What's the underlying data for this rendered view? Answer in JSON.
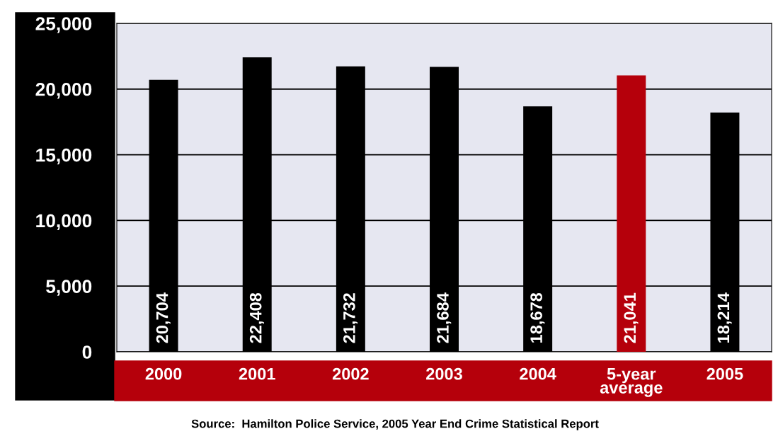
{
  "chart_data": {
    "type": "bar",
    "categories": [
      "2000",
      "2001",
      "2002",
      "2003",
      "2004",
      "5-year\naverage",
      "2005"
    ],
    "values": [
      20704,
      22408,
      21732,
      21684,
      18678,
      21041,
      18214
    ],
    "colors": [
      "#000000",
      "#000000",
      "#000000",
      "#000000",
      "#000000",
      "#b5000b",
      "#000000"
    ],
    "value_labels": [
      "20,704",
      "22,408",
      "21,732",
      "21,684",
      "18,678",
      "21,041",
      "18,214"
    ],
    "ylim": [
      0,
      25000
    ],
    "yticks": [
      {
        "value": 0,
        "label": "0"
      },
      {
        "value": 5000,
        "label": "5,000"
      },
      {
        "value": 10000,
        "label": "10,000"
      },
      {
        "value": 15000,
        "label": "15,000"
      },
      {
        "value": 20000,
        "label": "20,000"
      },
      {
        "value": 25000,
        "label": "25,000"
      }
    ],
    "grid": "y",
    "annotations": [
      "Source:  Hamilton Police Service, 2005 Year End Crime Statistical Report"
    ]
  }
}
